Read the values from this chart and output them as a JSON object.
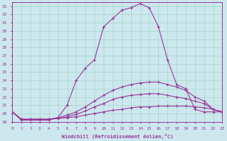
{
  "xlabel": "Windchill (Refroidissement éolien,°C)",
  "bg_color": "#cce8ee",
  "grid_color": "#aad8cc",
  "line_color": "#993399",
  "xlim": [
    0,
    23
  ],
  "ylim": [
    19,
    33.5
  ],
  "yticks": [
    19,
    20,
    21,
    22,
    23,
    24,
    25,
    26,
    27,
    28,
    29,
    30,
    31,
    32,
    33
  ],
  "xticks": [
    0,
    1,
    2,
    3,
    4,
    5,
    6,
    7,
    8,
    9,
    10,
    11,
    12,
    13,
    14,
    15,
    16,
    17,
    18,
    19,
    20,
    21,
    22,
    23
  ],
  "series": [
    {
      "x": [
        0,
        1,
        2,
        3,
        4,
        5,
        6,
        7,
        8,
        9,
        10,
        11,
        12,
        13,
        14,
        15,
        16,
        17,
        18,
        19,
        20,
        21,
        22,
        23
      ],
      "y": [
        20.2,
        19.2,
        19.2,
        19.2,
        19.2,
        19.5,
        21.0,
        24.0,
        25.5,
        26.5,
        30.5,
        31.5,
        32.5,
        32.8,
        33.3,
        32.8,
        30.5,
        26.5,
        23.5,
        23.0,
        20.5,
        20.2,
        20.2,
        20.2
      ]
    },
    {
      "x": [
        0,
        1,
        2,
        3,
        4,
        5,
        6,
        7,
        8,
        9,
        10,
        11,
        12,
        13,
        14,
        15,
        16,
        17,
        18,
        19,
        20,
        21,
        22,
        23
      ],
      "y": [
        20.2,
        19.3,
        19.3,
        19.3,
        19.3,
        19.5,
        19.8,
        20.2,
        20.8,
        21.5,
        22.2,
        22.8,
        23.2,
        23.5,
        23.7,
        23.8,
        23.8,
        23.5,
        23.2,
        22.8,
        22.0,
        21.5,
        20.5,
        20.2
      ]
    },
    {
      "x": [
        0,
        1,
        2,
        3,
        4,
        5,
        6,
        7,
        8,
        9,
        10,
        11,
        12,
        13,
        14,
        15,
        16,
        17,
        18,
        19,
        20,
        21,
        22,
        23
      ],
      "y": [
        20.2,
        19.3,
        19.3,
        19.3,
        19.3,
        19.4,
        19.6,
        19.9,
        20.3,
        20.8,
        21.2,
        21.7,
        22.0,
        22.2,
        22.3,
        22.4,
        22.4,
        22.2,
        22.0,
        21.8,
        21.5,
        21.2,
        20.5,
        20.2
      ]
    },
    {
      "x": [
        0,
        1,
        2,
        3,
        4,
        5,
        6,
        7,
        8,
        9,
        10,
        11,
        12,
        13,
        14,
        15,
        16,
        17,
        18,
        19,
        20,
        21,
        22,
        23
      ],
      "y": [
        20.2,
        19.3,
        19.3,
        19.3,
        19.3,
        19.4,
        19.5,
        19.6,
        19.8,
        20.0,
        20.2,
        20.4,
        20.5,
        20.7,
        20.8,
        20.8,
        20.9,
        20.9,
        20.9,
        20.9,
        20.8,
        20.7,
        20.5,
        20.2
      ]
    }
  ]
}
